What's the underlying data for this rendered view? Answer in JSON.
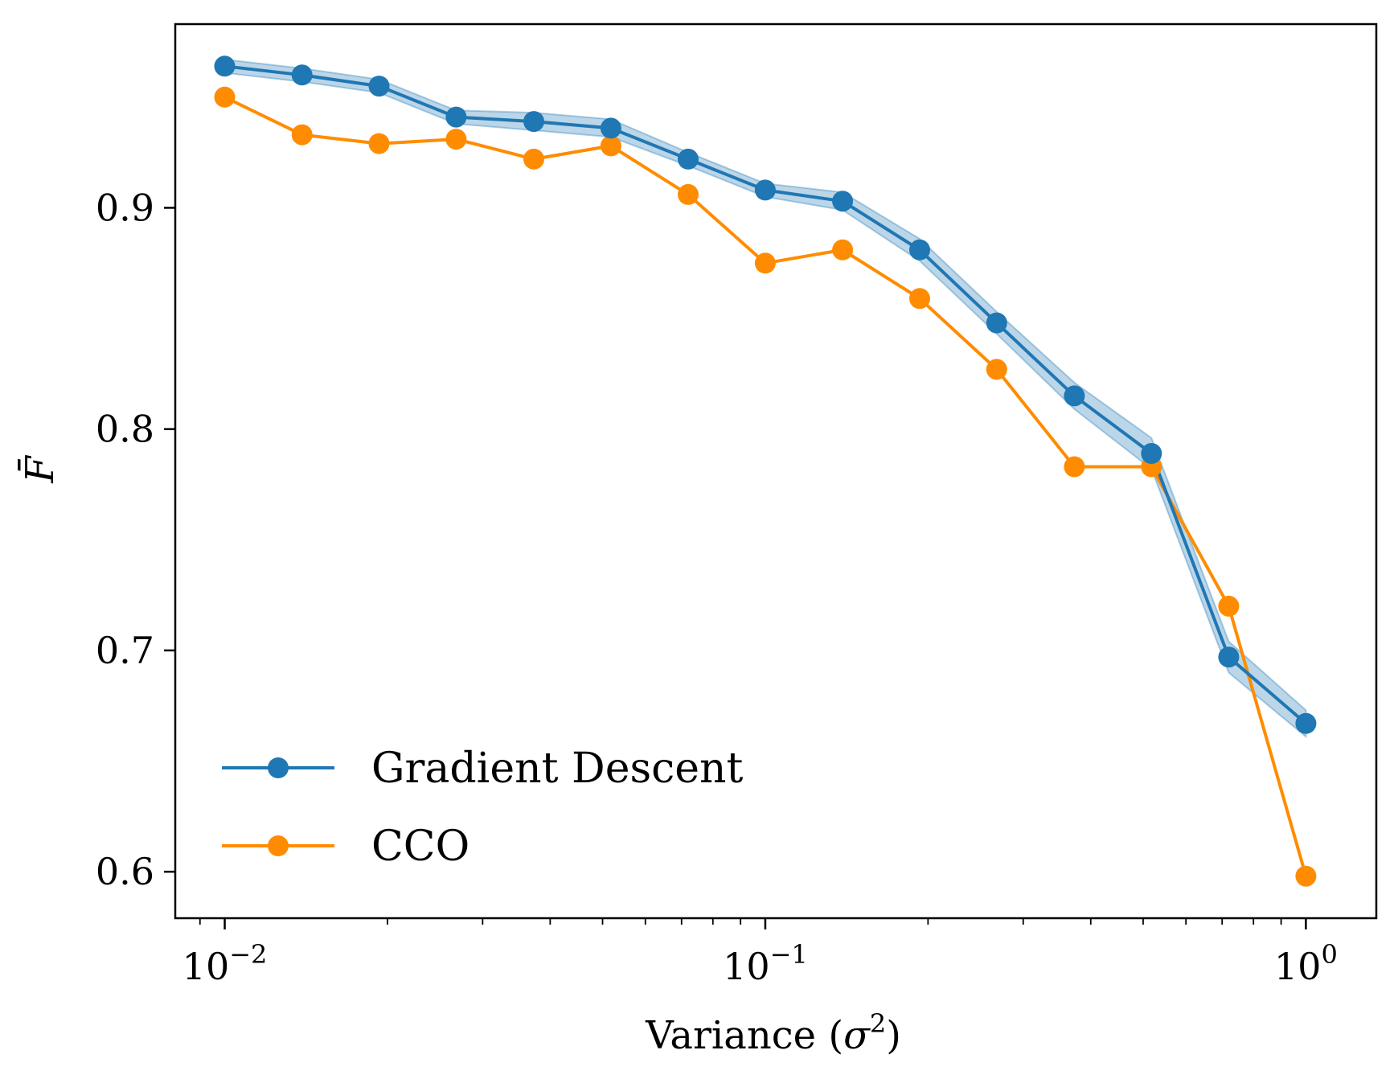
{
  "chart_data": {
    "type": "line",
    "title": "",
    "xlabel": "Variance (σ²)",
    "xlabel_text": "Variance (",
    "xlabel_symbol": "σ",
    "xlabel_exp": "2",
    "xlabel_close": ")",
    "ylabel": "F̄",
    "xscale": "log",
    "xlim": [
      0.0081,
      1.35
    ],
    "ylim": [
      0.579,
      0.983
    ],
    "xticks": [
      {
        "value": 0.01,
        "base": "10",
        "exp": "−2"
      },
      {
        "value": 0.1,
        "base": "10",
        "exp": "−1"
      },
      {
        "value": 1,
        "base": "10",
        "exp": "0"
      }
    ],
    "yticks": [
      {
        "value": 0.6,
        "label": "0.6"
      },
      {
        "value": 0.7,
        "label": "0.7"
      },
      {
        "value": 0.8,
        "label": "0.8"
      },
      {
        "value": 0.9,
        "label": "0.9"
      }
    ],
    "legend_location": "lower-left",
    "x": [
      0.01,
      0.0139,
      0.0193,
      0.0268,
      0.0373,
      0.0518,
      0.072,
      0.1,
      0.139,
      0.193,
      0.268,
      0.373,
      0.518,
      0.72,
      1.0
    ],
    "series": [
      {
        "name": "Gradient Descent",
        "color": "#1f77b4",
        "band_color": "#1f77b4",
        "values": [
          0.964,
          0.96,
          0.955,
          0.941,
          0.939,
          0.936,
          0.922,
          0.908,
          0.903,
          0.881,
          0.848,
          0.815,
          0.789,
          0.697,
          0.667
        ],
        "band_halfwidth": [
          0.003,
          0.003,
          0.003,
          0.003,
          0.004,
          0.004,
          0.003,
          0.003,
          0.004,
          0.005,
          0.005,
          0.006,
          0.007,
          0.007,
          0.006
        ]
      },
      {
        "name": "CCO",
        "color": "#ff8c00",
        "values": [
          0.95,
          0.933,
          0.929,
          0.931,
          0.922,
          0.928,
          0.906,
          0.875,
          0.881,
          0.859,
          0.827,
          0.783,
          0.783,
          0.72,
          0.598
        ]
      }
    ]
  }
}
